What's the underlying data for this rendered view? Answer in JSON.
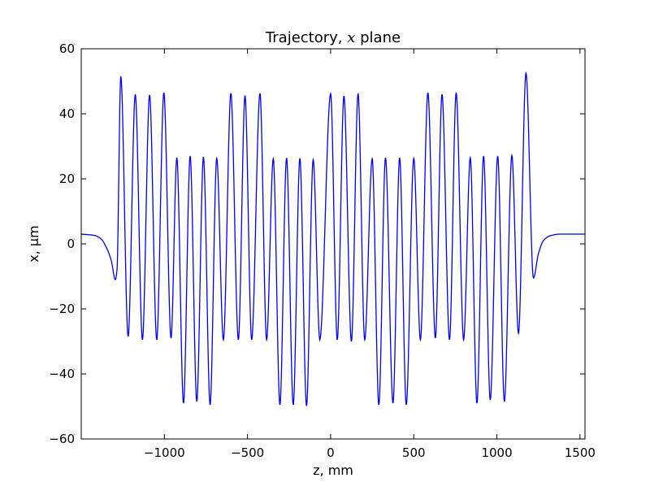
{
  "chart_data": {
    "type": "line",
    "title_prefix": "Trajectory, ",
    "title_var": "x",
    "title_suffix": " plane",
    "xlabel": "z, mm",
    "ylabel": "x, µm",
    "xlim": [
      -1500,
      1530
    ],
    "ylim": [
      -60,
      60
    ],
    "x_ticks": [
      -1000,
      -500,
      0,
      500,
      1000,
      1500
    ],
    "x_tick_labels": [
      "−1000",
      "−500",
      "0",
      "500",
      "1000",
      "1500"
    ],
    "y_ticks": [
      60,
      40,
      20,
      0,
      -20,
      -40,
      -60
    ],
    "y_tick_labels": [
      "60",
      "40",
      "20",
      "0",
      "−20",
      "−40",
      "−60"
    ],
    "grid": false,
    "line_color": "#0000ff",
    "series": [
      {
        "x": [
          -1500,
          -1420,
          -1380,
          -1350,
          -1320,
          -1295,
          -1285,
          -1262,
          -1218,
          -1175,
          -1132,
          -1089,
          -1046,
          -1003,
          -960,
          -925,
          -885,
          -845,
          -805,
          -765,
          -725,
          -685,
          -645,
          -600,
          -555,
          -515,
          -475,
          -425,
          -385,
          -345,
          -305,
          -265,
          -225,
          -185,
          -145,
          -105,
          -65,
          0,
          40,
          80,
          125,
          165,
          205,
          250,
          290,
          330,
          375,
          415,
          455,
          500,
          540,
          585,
          630,
          670,
          715,
          755,
          800,
          840,
          880,
          920,
          960,
          1005,
          1045,
          1090,
          1130,
          1175,
          1220,
          1250,
          1280,
          1320,
          1380,
          1530
        ],
        "y": [
          3,
          2.6,
          1.5,
          -1,
          -5,
          -11,
          -8,
          51.5,
          -28.5,
          46,
          -29.5,
          45.8,
          -29.5,
          46.5,
          -29,
          26.5,
          -49,
          27,
          -48.5,
          26.7,
          -49.5,
          26.3,
          -29.5,
          46.3,
          -29.5,
          45.6,
          -29.5,
          46.3,
          -29.5,
          26.2,
          -49.5,
          26.4,
          -49.5,
          26.3,
          -49.8,
          25.9,
          -29.5,
          46.2,
          -29.5,
          45.5,
          -30,
          46.2,
          -29.5,
          26.2,
          -49.5,
          26.5,
          -49,
          26.5,
          -49.5,
          26.3,
          -29.5,
          46.5,
          -29,
          46,
          -29.5,
          46.5,
          -29.5,
          26.5,
          -49,
          27,
          -48,
          27,
          -48.5,
          27.2,
          -27.5,
          52.5,
          -10.5,
          -3,
          1,
          2.5,
          3,
          3
        ]
      }
    ]
  }
}
